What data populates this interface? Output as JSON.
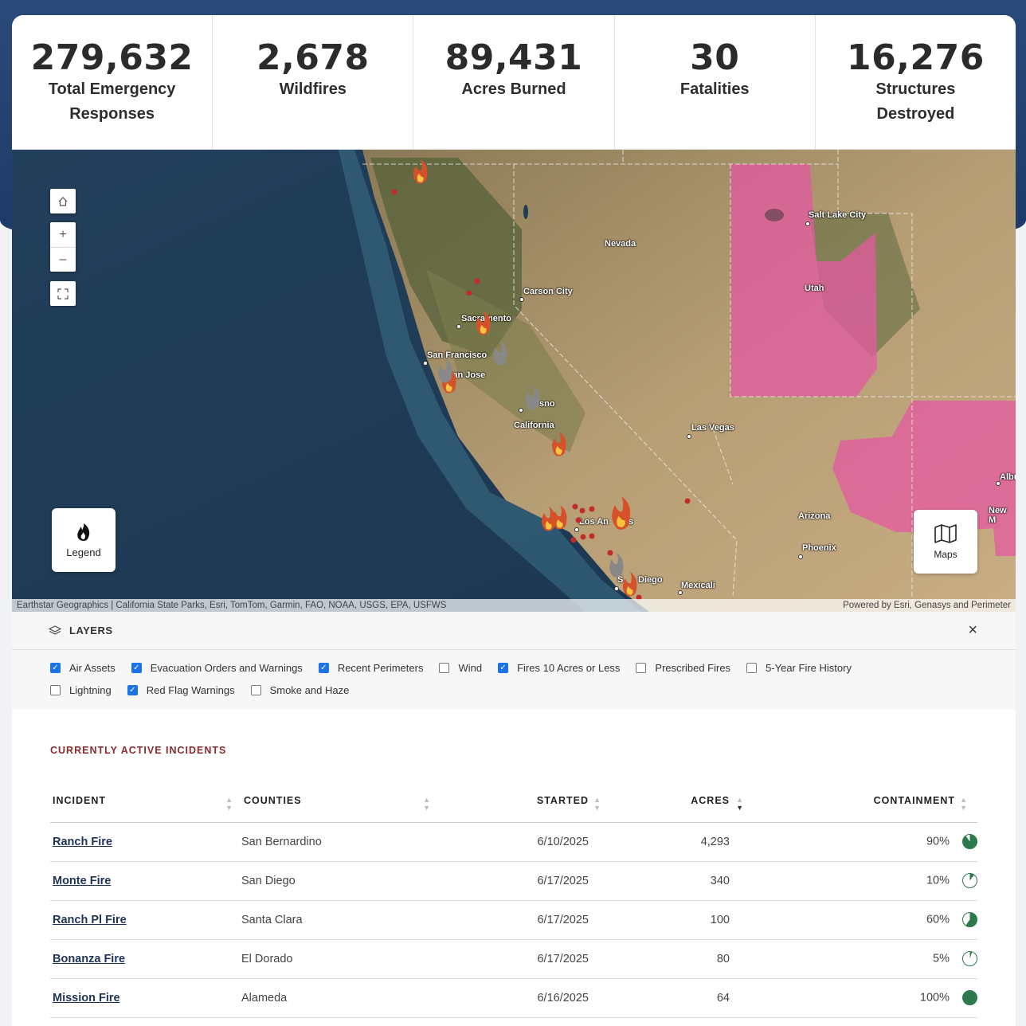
{
  "stats": [
    {
      "value": "279,632",
      "label": "Total Emergency Responses"
    },
    {
      "value": "2,678",
      "label": "Wildfires"
    },
    {
      "value": "89,431",
      "label": "Acres Burned"
    },
    {
      "value": "30",
      "label": "Fatalities"
    },
    {
      "value": "16,276",
      "label": "Structures Destroyed"
    }
  ],
  "map": {
    "cities": {
      "salt_lake_city": "Salt Lake City",
      "nevada": "Nevada",
      "utah": "Utah",
      "carson_city": "Carson City",
      "sacramento": "Sacramento",
      "san_francisco": "San Francisco",
      "san_jose": "San Jose",
      "fresno": "sno",
      "california": "California",
      "las_vegas": "Las Vegas",
      "los_angeles": "Los An",
      "los_angeles_tail": "s",
      "arizona": "Arizona",
      "phoenix": "Phoenix",
      "san_diego_a": "S",
      "san_diego_b": "Diego",
      "mexicali": "Mexicali",
      "albuquerque": "Albu",
      "new_mexico": "New M"
    },
    "legend_label": "Legend",
    "maps_label": "Maps",
    "attribution_left": "Earthstar Geographics | California State Parks, Esri, TomTom, Garmin, FAO, NOAA, USGS, EPA, USFWS",
    "attribution_right": "Powered by Esri, Genasys and Perimeter",
    "zoom_in": "+",
    "zoom_out": "–"
  },
  "layers": {
    "title": "LAYERS",
    "close": "×",
    "items": [
      {
        "label": "Air Assets",
        "checked": true
      },
      {
        "label": "Evacuation Orders and Warnings",
        "checked": true
      },
      {
        "label": "Recent Perimeters",
        "checked": true
      },
      {
        "label": "Wind",
        "checked": false
      },
      {
        "label": "Fires 10 Acres or Less",
        "checked": true
      },
      {
        "label": "Prescribed Fires",
        "checked": false
      },
      {
        "label": "5-Year Fire History",
        "checked": false
      },
      {
        "label": "Lightning",
        "checked": false
      },
      {
        "label": "Red Flag Warnings",
        "checked": true
      },
      {
        "label": "Smoke and Haze",
        "checked": false
      }
    ]
  },
  "incidents": {
    "title": "CURRENTLY ACTIVE INCIDENTS",
    "columns": {
      "incident": "INCIDENT",
      "counties": "COUNTIES",
      "started": "STARTED",
      "acres": "ACRES",
      "containment": "CONTAINMENT"
    },
    "rows": [
      {
        "name": "Ranch Fire",
        "county": "San Bernardino",
        "started": "6/10/2025",
        "acres": "4,293",
        "containment": "90%",
        "pct": 0.9
      },
      {
        "name": "Monte Fire",
        "county": "San Diego",
        "started": "6/17/2025",
        "acres": "340",
        "containment": "10%",
        "pct": 0.1
      },
      {
        "name": "Ranch Pl Fire",
        "county": "Santa Clara",
        "started": "6/17/2025",
        "acres": "100",
        "containment": "60%",
        "pct": 0.6
      },
      {
        "name": "Bonanza Fire",
        "county": "El Dorado",
        "started": "6/17/2025",
        "acres": "80",
        "containment": "5%",
        "pct": 0.05
      },
      {
        "name": "Mission Fire",
        "county": "Alameda",
        "started": "6/16/2025",
        "acres": "64",
        "containment": "100%",
        "pct": 1.0
      }
    ]
  },
  "colors": {
    "header_band": "#1d3b68",
    "incident_link": "#1d3358",
    "section_title": "#8b2b2b",
    "containment": "#2c7a4b",
    "checkbox_on": "#1a73e8",
    "red_flag": "#e35aa0"
  }
}
